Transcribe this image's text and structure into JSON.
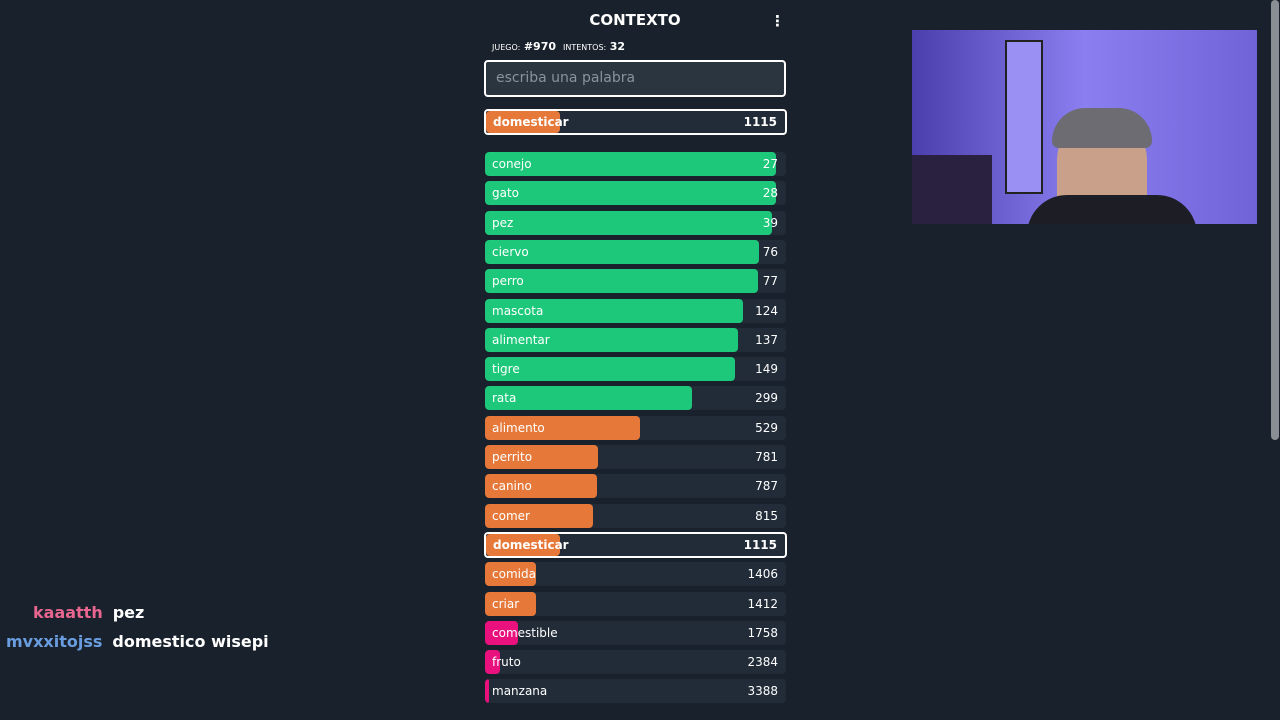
{
  "header": {
    "title": "CONTEXTO",
    "game_label": "JUEGO:",
    "game_number": "#970",
    "attempts_label": "INTENTOS:",
    "attempts": "32"
  },
  "input": {
    "placeholder": "escriba una palabra"
  },
  "last_guess": {
    "word": "domesticar",
    "rank": 1115,
    "color": "#e6793a"
  },
  "guesses": [
    {
      "word": "conejo",
      "rank": 27,
      "color": "#1ec87a"
    },
    {
      "word": "gato",
      "rank": 28,
      "color": "#1ec87a"
    },
    {
      "word": "pez",
      "rank": 39,
      "color": "#1ec87a"
    },
    {
      "word": "ciervo",
      "rank": 76,
      "color": "#1ec87a"
    },
    {
      "word": "perro",
      "rank": 77,
      "color": "#1ec87a"
    },
    {
      "word": "mascota",
      "rank": 124,
      "color": "#1ec87a"
    },
    {
      "word": "alimentar",
      "rank": 137,
      "color": "#1ec87a"
    },
    {
      "word": "tigre",
      "rank": 149,
      "color": "#1ec87a"
    },
    {
      "word": "rata",
      "rank": 299,
      "color": "#1ec87a"
    },
    {
      "word": "alimento",
      "rank": 529,
      "color": "#e6793a"
    },
    {
      "word": "perrito",
      "rank": 781,
      "color": "#e6793a"
    },
    {
      "word": "canino",
      "rank": 787,
      "color": "#e6793a"
    },
    {
      "word": "comer",
      "rank": 815,
      "color": "#e6793a"
    },
    {
      "word": "domesticar",
      "rank": 1115,
      "color": "#e6793a",
      "highlight": true
    },
    {
      "word": "comida",
      "rank": 1406,
      "color": "#e6793a"
    },
    {
      "word": "criar",
      "rank": 1412,
      "color": "#e6793a"
    },
    {
      "word": "comestible",
      "rank": 1758,
      "color": "#e8117d"
    },
    {
      "word": "fruto",
      "rank": 2384,
      "color": "#e8117d"
    },
    {
      "word": "manzana",
      "rank": 3388,
      "color": "#e8117d"
    }
  ],
  "chat": [
    {
      "user": "kaaatth",
      "user_color": "#e8668f",
      "message": "pez"
    },
    {
      "user": "mvxxitojss",
      "user_color": "#6a9de0",
      "message": "domestico wisepi"
    }
  ]
}
